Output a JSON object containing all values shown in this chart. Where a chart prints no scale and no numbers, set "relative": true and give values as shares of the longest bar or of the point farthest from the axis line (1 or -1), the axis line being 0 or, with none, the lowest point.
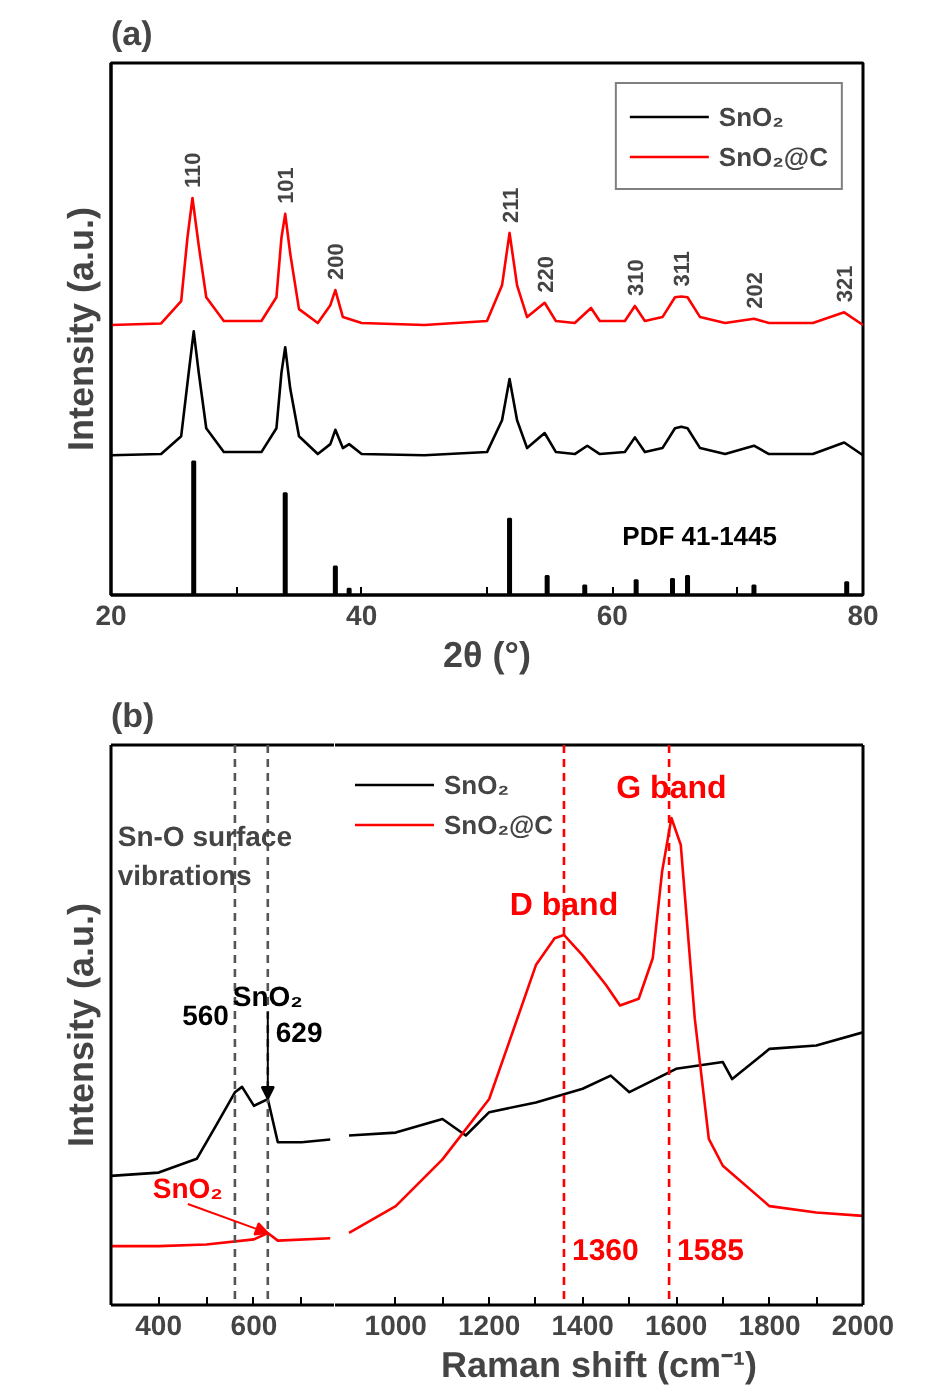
{
  "chart_data": [
    {
      "type": "line",
      "title": "(a)",
      "xlabel": "2θ (°)",
      "ylabel": "Intensity (a.u.)",
      "relative": true,
      "xlim": [
        20,
        80
      ],
      "xticks": [
        20,
        {
          "value": 30,
          "label": null
        },
        40,
        {
          "value": 50,
          "label": null
        },
        60,
        {
          "value": 70,
          "label": null
        },
        80
      ],
      "legend": "top right",
      "series": [
        {
          "name": "SnO₂",
          "color": "#000000",
          "x": [
            20,
            24,
            25.6,
            26.2,
            26.6,
            27.0,
            27.6,
            29,
            32,
            33.2,
            33.6,
            33.9,
            34.3,
            35,
            36.5,
            37.5,
            37.9,
            38.5,
            39,
            40,
            45,
            50,
            51.2,
            51.8,
            52.4,
            53.2,
            54.6,
            55.5,
            57,
            58,
            59,
            61,
            61.8,
            62.6,
            64,
            65,
            65.5,
            66,
            67,
            69,
            71.3,
            72.5,
            76,
            78.5,
            80
          ],
          "values": [
            0.352,
            0.355,
            0.4,
            0.56,
            0.664,
            0.56,
            0.42,
            0.36,
            0.36,
            0.42,
            0.56,
            0.624,
            0.52,
            0.4,
            0.355,
            0.38,
            0.416,
            0.37,
            0.38,
            0.355,
            0.352,
            0.36,
            0.44,
            0.544,
            0.44,
            0.37,
            0.408,
            0.36,
            0.355,
            0.376,
            0.355,
            0.36,
            0.397,
            0.36,
            0.37,
            0.42,
            0.424,
            0.42,
            0.37,
            0.355,
            0.376,
            0.355,
            0.355,
            0.384,
            0.352
          ]
        },
        {
          "name": "SnO₂@C",
          "color": "#ff0000",
          "x": [
            20,
            24,
            25.6,
            26.1,
            26.5,
            27.0,
            27.6,
            29,
            32,
            33.2,
            33.6,
            33.9,
            34.3,
            35,
            36.5,
            37.5,
            37.9,
            38.5,
            40,
            45,
            50,
            51.2,
            51.8,
            52.4,
            53.2,
            54.6,
            55.5,
            57,
            58.3,
            59,
            61,
            61.8,
            62.6,
            64,
            65,
            65.5,
            66,
            67,
            69,
            71.3,
            72.5,
            76,
            78.5,
            80
          ],
          "values": [
            0.68,
            0.684,
            0.74,
            0.9,
            1.0,
            0.88,
            0.75,
            0.69,
            0.69,
            0.75,
            0.9,
            0.96,
            0.86,
            0.72,
            0.685,
            0.73,
            0.768,
            0.7,
            0.685,
            0.68,
            0.69,
            0.78,
            0.912,
            0.78,
            0.7,
            0.736,
            0.69,
            0.685,
            0.723,
            0.69,
            0.69,
            0.728,
            0.69,
            0.7,
            0.75,
            0.752,
            0.75,
            0.7,
            0.685,
            0.696,
            0.685,
            0.685,
            0.712,
            0.68
          ]
        },
        {
          "type": "bar",
          "name": "PDF 41-1445",
          "color": "#000000",
          "x": [
            26.6,
            33.9,
            37.9,
            39.0,
            51.8,
            54.8,
            57.8,
            61.9,
            64.8,
            66.0,
            71.3,
            78.7
          ],
          "values": [
            0.336,
            0.256,
            0.072,
            0.016,
            0.192,
            0.048,
            0.024,
            0.037,
            0.04,
            0.048,
            0.024,
            0.032
          ]
        }
      ],
      "annotations": [
        {
          "text": "110",
          "x": 26.5,
          "y": 1.0
        },
        {
          "text": "101",
          "x": 33.9,
          "y": 0.96
        },
        {
          "text": "200",
          "x": 37.9,
          "y": 0.768
        },
        {
          "text": "211",
          "x": 51.8,
          "y": 0.912
        },
        {
          "text": "220",
          "x": 54.6,
          "y": 0.736
        },
        {
          "text": "310",
          "x": 61.8,
          "y": 0.728
        },
        {
          "text": "311",
          "x": 65.5,
          "y": 0.752
        },
        {
          "text": "202",
          "x": 71.3,
          "y": 0.696
        },
        {
          "text": "321",
          "x": 78.5,
          "y": 0.712
        }
      ]
    },
    {
      "type": "line",
      "title": "(b)",
      "ylabel": "Intensity (a.u.)",
      "relative": true,
      "xlim": [
        300,
        770
      ],
      "xticks": [
        400,
        {
          "value": 500,
          "label": null
        },
        600,
        {
          "value": 700,
          "label": null
        }
      ],
      "series": [
        {
          "color": "#000000",
          "x": [
            300,
            400,
            480,
            520,
            560,
            575,
            600,
            629,
            650,
            700,
            760
          ],
          "values": [
            0.592,
            0.607,
            0.67,
            0.821,
            0.975,
            1.0,
            0.913,
            0.944,
            0.746,
            0.746,
            0.759
          ]
        },
        {
          "color": "#ff0000",
          "x": [
            300,
            400,
            500,
            600,
            629,
            650,
            760
          ],
          "values": [
            0.27,
            0.27,
            0.277,
            0.301,
            0.33,
            0.295,
            0.306
          ]
        }
      ],
      "ref_lines": [
        {
          "axis": "x",
          "value": 560,
          "label": "560",
          "color": "#555555",
          "line_style": "dashed"
        },
        {
          "axis": "x",
          "value": 629,
          "label": "629",
          "color": "#555555",
          "line_style": "dashed"
        }
      ],
      "annotations": [
        "Sn-O surface vibrations",
        {
          "text": "SnO₂",
          "x": 629,
          "y": 0.944
        },
        {
          "text": "SnO₂",
          "x": 629,
          "y": 0.33
        }
      ]
    },
    {
      "type": "line",
      "xlabel": "Raman shift (cm⁻¹)",
      "relative": true,
      "xlim": [
        870,
        2000
      ],
      "xticks": [
        1000,
        {
          "value": 1100,
          "label": null
        },
        1200,
        {
          "value": 1300,
          "label": null
        },
        1400,
        {
          "value": 1500,
          "label": null
        },
        1600,
        {
          "value": 1700,
          "label": null
        },
        1800,
        {
          "value": 1900,
          "label": null
        },
        2000
      ],
      "legend": "top left",
      "series": [
        {
          "name": "SnO₂",
          "color": "#000000",
          "x": [
            900,
            1000,
            1100,
            1150,
            1200,
            1300,
            1400,
            1460,
            1500,
            1600,
            1700,
            1720,
            1800,
            1900,
            2000
          ],
          "values": [
            0.348,
            0.354,
            0.382,
            0.348,
            0.396,
            0.416,
            0.444,
            0.471,
            0.437,
            0.485,
            0.499,
            0.464,
            0.526,
            0.533,
            0.56
          ]
        },
        {
          "name": "SnO₂@C",
          "color": "#ff0000",
          "x": [
            900,
            1000,
            1100,
            1200,
            1250,
            1300,
            1340,
            1360,
            1400,
            1450,
            1480,
            1520,
            1550,
            1570,
            1590,
            1610,
            1640,
            1670,
            1700,
            1800,
            1900,
            2000
          ],
          "values": [
            0.148,
            0.203,
            0.299,
            0.423,
            0.56,
            0.698,
            0.753,
            0.76,
            0.718,
            0.657,
            0.615,
            0.629,
            0.712,
            0.89,
            1.0,
            0.945,
            0.588,
            0.341,
            0.286,
            0.203,
            0.19,
            0.183
          ]
        }
      ],
      "ref_lines": [
        {
          "axis": "x",
          "value": 1360,
          "label": "1360",
          "color": "#ff0000",
          "line_style": "dashed"
        },
        {
          "axis": "x",
          "value": 1585,
          "label": "1585",
          "color": "#ff0000",
          "line_style": "dashed"
        }
      ],
      "annotations": [
        {
          "text": "D band",
          "x": 1360,
          "y": 0.76
        },
        {
          "text": "G band",
          "x": 1590,
          "y": 1.0
        }
      ]
    }
  ]
}
